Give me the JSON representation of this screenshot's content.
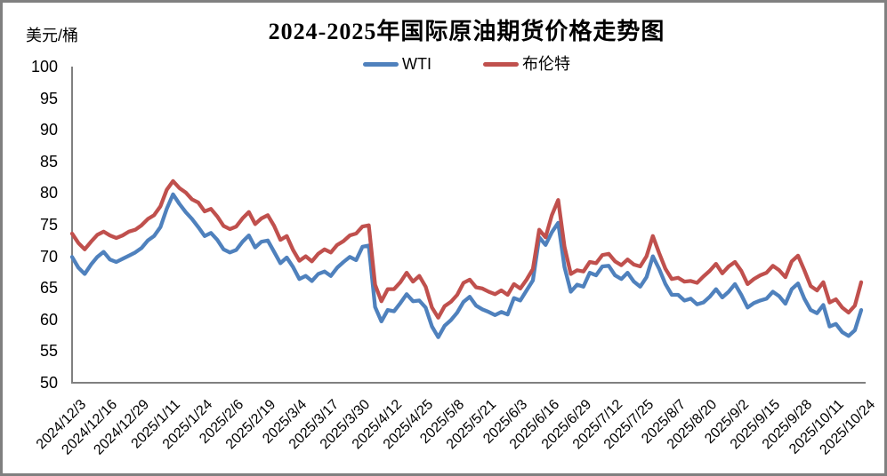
{
  "page": {
    "title": "2024-2025年国际原油期货价格走势图",
    "y_axis_unit": "美元/桶"
  },
  "colors": {
    "wti": "#4F81BD",
    "brent": "#C0504D",
    "axis": "#808080",
    "frame": "#808080",
    "text": "#000000"
  },
  "chart_data": {
    "type": "line",
    "title": "2024-2025年国际原油期货价格走势图",
    "ylabel": "美元/桶",
    "ylim": [
      50,
      100
    ],
    "ytick_interval": 5,
    "y_ticks": [
      100,
      95,
      90,
      85,
      80,
      75,
      70,
      65,
      60,
      55,
      50
    ],
    "grid": false,
    "legend_position": "top-center",
    "x_tick_labels": [
      "2024/12/3",
      "2024/12/16",
      "2024/12/29",
      "2025/1/11",
      "2025/1/24",
      "2025/2/6",
      "2025/2/19",
      "2025/3/4",
      "2025/3/17",
      "2025/3/30",
      "2025/4/12",
      "2025/4/25",
      "2025/5/8",
      "2025/5/21",
      "2025/6/3",
      "2025/6/16",
      "2025/6/29",
      "2025/7/12",
      "2025/7/25",
      "2025/8/7",
      "2025/8/20",
      "2025/9/2",
      "2025/9/15",
      "2025/9/28",
      "2025/10/11",
      "2025/10/24"
    ],
    "series": [
      {
        "name": "WTI",
        "color": "#4F81BD",
        "values": [
          69.9,
          68.2,
          67.2,
          68.7,
          69.9,
          70.7,
          69.5,
          69.1,
          69.6,
          70.1,
          70.6,
          71.3,
          72.5,
          73.2,
          74.6,
          77.5,
          79.8,
          78.3,
          77.0,
          75.9,
          74.6,
          73.2,
          73.7,
          72.6,
          71.1,
          70.6,
          71.0,
          72.3,
          73.3,
          71.4,
          72.3,
          72.5,
          70.7,
          68.9,
          69.8,
          68.3,
          66.4,
          66.9,
          66.1,
          67.2,
          67.6,
          66.9,
          68.2,
          69.1,
          69.9,
          69.4,
          71.5,
          71.7,
          62.0,
          59.7,
          61.5,
          61.3,
          62.6,
          64.0,
          62.9,
          63.0,
          61.9,
          58.9,
          57.2,
          59.0,
          59.9,
          61.1,
          62.8,
          63.6,
          62.2,
          61.6,
          61.2,
          60.7,
          61.2,
          60.8,
          63.4,
          63.0,
          64.6,
          66.2,
          73.0,
          71.8,
          73.8,
          75.3,
          68.3,
          64.4,
          65.5,
          65.2,
          67.4,
          67.0,
          68.4,
          68.5,
          67.0,
          66.4,
          67.4,
          66.0,
          65.2,
          66.7,
          70.0,
          68.0,
          65.6,
          63.9,
          63.9,
          63.0,
          63.3,
          62.4,
          62.7,
          63.6,
          64.8,
          63.5,
          64.4,
          65.6,
          63.9,
          61.9,
          62.6,
          63.0,
          63.3,
          64.4,
          63.7,
          62.5,
          64.8,
          65.7,
          63.3,
          61.5,
          61.0,
          62.3,
          58.9,
          59.3,
          58.0,
          57.4,
          58.3,
          61.5
        ]
      },
      {
        "name": "布伦特",
        "color": "#C0504D",
        "values": [
          73.6,
          72.1,
          71.1,
          72.3,
          73.4,
          73.9,
          73.3,
          72.9,
          73.3,
          73.9,
          74.2,
          74.9,
          75.9,
          76.5,
          77.9,
          80.5,
          81.9,
          80.8,
          80.1,
          79.0,
          78.5,
          77.1,
          77.5,
          76.3,
          74.8,
          74.3,
          74.7,
          76.0,
          77.0,
          75.1,
          76.0,
          76.5,
          74.8,
          72.6,
          73.2,
          71.0,
          69.3,
          70.0,
          69.2,
          70.4,
          71.1,
          70.6,
          71.8,
          72.4,
          73.3,
          73.6,
          74.7,
          74.9,
          65.5,
          62.9,
          64.8,
          64.8,
          65.9,
          67.4,
          66.0,
          66.9,
          65.2,
          61.9,
          60.3,
          62.1,
          62.8,
          63.9,
          65.8,
          66.3,
          65.1,
          64.9,
          64.4,
          64.0,
          64.6,
          63.9,
          65.6,
          64.9,
          66.3,
          68.0,
          74.2,
          73.0,
          76.5,
          78.9,
          71.5,
          67.2,
          67.8,
          67.6,
          69.1,
          68.9,
          70.2,
          70.4,
          69.2,
          68.6,
          69.5,
          68.7,
          68.4,
          70.0,
          73.2,
          70.5,
          68.0,
          66.4,
          66.6,
          66.0,
          66.1,
          65.8,
          66.8,
          67.7,
          68.8,
          67.3,
          68.4,
          69.1,
          67.7,
          65.6,
          66.4,
          67.0,
          67.4,
          68.5,
          67.8,
          66.7,
          69.2,
          70.1,
          67.8,
          65.3,
          64.6,
          65.9,
          62.7,
          63.2,
          61.9,
          61.1,
          62.2,
          65.9
        ]
      }
    ]
  }
}
